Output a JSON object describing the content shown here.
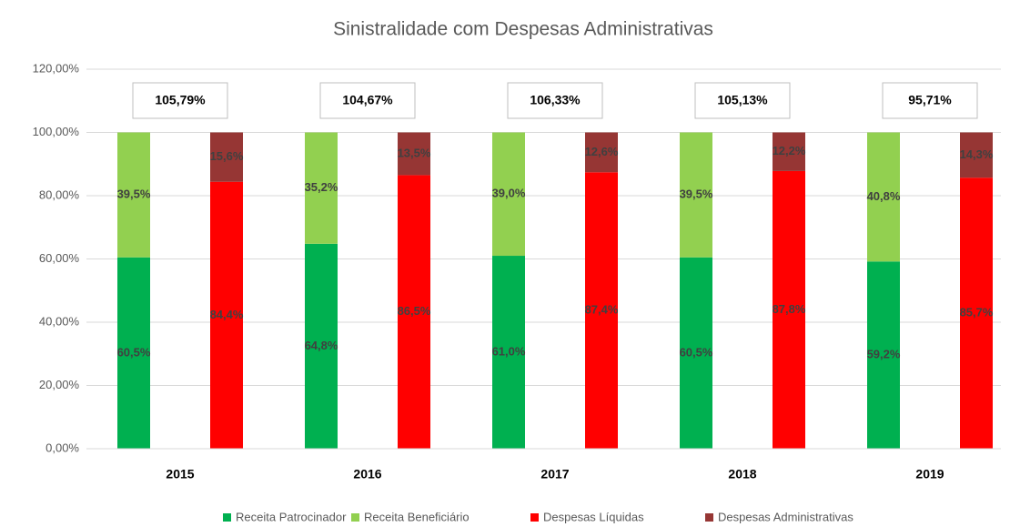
{
  "chart_data": {
    "type": "bar",
    "title": "Sinistralidade com Despesas Administrativas",
    "categories": [
      "2015",
      "2016",
      "2017",
      "2018",
      "2019"
    ],
    "series": [
      {
        "name": "Receita Patrocinador",
        "color": "#00b050",
        "stack": "receita",
        "values": [
          60.5,
          64.8,
          61.0,
          60.5,
          59.2
        ],
        "value_labels": [
          "60,5%",
          "64,8%",
          "61,0%",
          "60,5%",
          "59,2%"
        ]
      },
      {
        "name": "Receita Beneficiário",
        "color": "#92d050",
        "stack": "receita",
        "values": [
          39.5,
          35.2,
          39.0,
          39.5,
          40.8
        ],
        "value_labels": [
          "39,5%",
          "35,2%",
          "39,0%",
          "39,5%",
          "40,8%"
        ]
      },
      {
        "name": "Despesas Líquidas",
        "color": "#ff0000",
        "stack": "despesas",
        "values": [
          84.4,
          86.5,
          87.4,
          87.8,
          85.7
        ],
        "value_labels": [
          "84,4%",
          "86,5%",
          "87,4%",
          "87,8%",
          "85,7%"
        ]
      },
      {
        "name": "Despesas Administrativas",
        "color": "#963634",
        "stack": "despesas",
        "values": [
          15.6,
          13.5,
          12.6,
          12.2,
          14.3
        ],
        "value_labels": [
          "15,6%",
          "13,5%",
          "12,6%",
          "12,2%",
          "14,3%"
        ]
      }
    ],
    "annotations": [
      "105,79%",
      "104,67%",
      "106,33%",
      "105,13%",
      "95,71%"
    ],
    "ylim": [
      0,
      120
    ],
    "yticks": [
      {
        "value": 0,
        "label": "0,00%"
      },
      {
        "value": 20,
        "label": "20,00%"
      },
      {
        "value": 40,
        "label": "40,00%"
      },
      {
        "value": 60,
        "label": "60,00%"
      },
      {
        "value": 80,
        "label": "80,00%"
      },
      {
        "value": 100,
        "label": "100,00%"
      },
      {
        "value": 120,
        "label": "120,00%"
      }
    ],
    "grid": true,
    "legend": "bottom"
  }
}
